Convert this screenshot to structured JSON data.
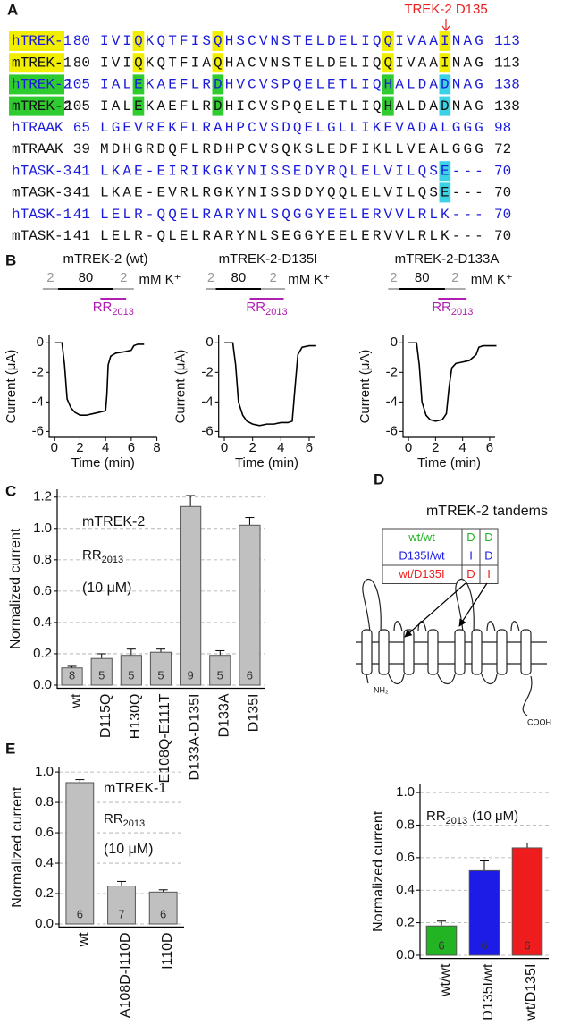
{
  "panel_labels": [
    "A",
    "B",
    "C",
    "D",
    "E"
  ],
  "alignment": {
    "marker": "TREK-2 D135",
    "rows": [
      {
        "name": "hTREK-1",
        "start": 80,
        "sequence": "IVIQKQTFISQHSCVNSTELDELIQQIVAAINAG",
        "end": 113,
        "color": "#1a1adc"
      },
      {
        "name": "mTREK-1",
        "start": 80,
        "sequence": "IVIQKQTFIAQHACVNSTELDELIQQIVAAINAG",
        "end": 113,
        "color": "#111111"
      },
      {
        "name": "hTREK-2",
        "start": 105,
        "sequence": "IALEKAEFLRDHVCVSPQELETLIQHALDADNAG",
        "end": 138,
        "color": "#1a1adc"
      },
      {
        "name": "mTREK-2",
        "start": 105,
        "sequence": "IALEKAEFLRDHICVSPQELETLIQHALDADNAG",
        "end": 138,
        "color": "#111111"
      },
      {
        "name": "hTRAAK",
        "start": 65,
        "sequence": "LGEVREKFLRAHPCVSDQELGLLIKEVADALGGG",
        "end": 98,
        "color": "#1a1adc"
      },
      {
        "name": "mTRAAK",
        "start": 39,
        "sequence": "MDHGRDQFLRDHPCVSQKSLEDFIKLLVEALGGG",
        "end": 72,
        "color": "#111111"
      },
      {
        "name": "hTASK-3",
        "start": 41,
        "sequence": "LKAE-EIRIKGKYNISSEDYRQLELVILQSE---",
        "end": 70,
        "color": "#1a1adc"
      },
      {
        "name": "mTASK-3",
        "start": 41,
        "sequence": "LKAE-EVRLRGKYNISSDDYQQLELVILQSE---",
        "end": 70,
        "color": "#111111"
      },
      {
        "name": "hTASK-1",
        "start": 41,
        "sequence": "LELR-QQELRARYNLSQGGYEELERVVLRLK---",
        "end": 70,
        "color": "#1a1adc"
      },
      {
        "name": "mTASK-1",
        "start": 41,
        "sequence": "LELR-QLELRARYNLSEGGYEELERVVLRLK---",
        "end": 70,
        "color": "#111111"
      }
    ]
  },
  "tandems": {
    "title": "mTREK-2 tandems",
    "n_terminus": "NH₂",
    "c_terminus": "COOH",
    "rows": [
      {
        "name": "wt/wt",
        "residues": [
          "D",
          "D"
        ],
        "color": "#22b422"
      },
      {
        "name": "D135I/wt",
        "residues": [
          "I",
          "D"
        ],
        "color": "#1c1ce6"
      },
      {
        "name": "wt/D135I",
        "residues": [
          "D",
          "I"
        ],
        "color": "#ee1c1c"
      }
    ]
  },
  "chart_data": [
    {
      "type": "line",
      "title": "mTREK-2 (wt)",
      "xlabel": "Time (min)",
      "ylabel": "Current (μA)",
      "color": "#000000",
      "solution": {
        "low": "2",
        "high": "80",
        "unit": "mM K⁺"
      },
      "drug": {
        "main": "RR",
        "sub": "2013"
      },
      "x": [
        0,
        0.6,
        0.8,
        1,
        1.3,
        1.6,
        2,
        2.5,
        3,
        3.5,
        4,
        4.1,
        4.2,
        4.4,
        4.8,
        5.5,
        6,
        6.2,
        6.5,
        7
      ],
      "values": [
        0,
        0,
        -1.5,
        -3.8,
        -4.4,
        -4.7,
        -4.9,
        -4.9,
        -4.8,
        -4.7,
        -4.6,
        -3.5,
        -1.5,
        -0.9,
        -0.7,
        -0.6,
        -0.5,
        -0.2,
        -0.1,
        -0.1
      ],
      "xlim": [
        -0.4,
        8
      ],
      "xticks": [
        0,
        2,
        4,
        6,
        8
      ],
      "ylim": [
        -6.4,
        0.5
      ],
      "yticks": [
        0,
        -2,
        -4,
        -6
      ]
    },
    {
      "type": "line",
      "title": "mTREK-2-D135I",
      "xlabel": "Time (min)",
      "ylabel": "Current (μA)",
      "color": "#000000",
      "solution": {
        "low": "2",
        "high": "80",
        "unit": "mM K⁺"
      },
      "drug": {
        "main": "RR",
        "sub": "2013"
      },
      "x": [
        0,
        0.6,
        0.8,
        1,
        1.3,
        1.6,
        2,
        2.5,
        3,
        3.5,
        4,
        4.5,
        4.8,
        5,
        5.2,
        5.5,
        6,
        6.5
      ],
      "values": [
        0,
        0,
        -1.5,
        -4,
        -4.9,
        -5.3,
        -5.5,
        -5.6,
        -5.5,
        -5.5,
        -5.4,
        -5.4,
        -5.3,
        -3,
        -0.8,
        -0.3,
        -0.2,
        -0.2
      ],
      "xlim": [
        -0.4,
        6.4
      ],
      "xticks": [
        0,
        2,
        4,
        6
      ],
      "ylim": [
        -6.4,
        0.5
      ],
      "yticks": [
        0,
        -2,
        -4,
        -6
      ]
    },
    {
      "type": "line",
      "title": "mTREK-2-D133A",
      "xlabel": "Time (min)",
      "ylabel": "Current (μA)",
      "color": "#000000",
      "solution": {
        "low": "2",
        "high": "80",
        "unit": "mM K⁺"
      },
      "drug": {
        "main": "RR",
        "sub": "2013"
      },
      "x": [
        0,
        0.6,
        0.8,
        1,
        1.3,
        1.6,
        2,
        2.5,
        2.8,
        3,
        3.2,
        3.5,
        4,
        4.5,
        5,
        5.2,
        5.5,
        6,
        6.5
      ],
      "values": [
        0,
        0,
        -1.5,
        -4,
        -4.9,
        -5.2,
        -5.3,
        -5.2,
        -4.8,
        -3,
        -1.7,
        -1.4,
        -1.3,
        -1.2,
        -0.8,
        -0.3,
        -0.2,
        -0.2,
        -0.2
      ],
      "xlim": [
        -0.4,
        6.4
      ],
      "xticks": [
        0,
        2,
        4,
        6
      ],
      "ylim": [
        -6.4,
        0.5
      ],
      "yticks": [
        0,
        -2,
        -4,
        -6
      ]
    },
    {
      "type": "bar",
      "title": "mTREK-2",
      "drug": {
        "main": "RR",
        "sub": "2013"
      },
      "concentration": "(10 μM)",
      "ylabel": "Normalized current",
      "color": "#c0c0c0",
      "grid": true,
      "categories": [
        "wt",
        "D115Q",
        "H130Q",
        "E108Q-E111T",
        "D133A-D135I",
        "D133A",
        "D135I"
      ],
      "values": [
        0.11,
        0.17,
        0.19,
        0.21,
        1.14,
        0.19,
        1.02
      ],
      "errors": [
        0.01,
        0.03,
        0.04,
        0.02,
        0.07,
        0.03,
        0.05
      ],
      "n": [
        8,
        5,
        5,
        5,
        9,
        5,
        6
      ],
      "ylim": [
        -0.02,
        1.25
      ],
      "yticks": [
        {
          "value": 0,
          "label": "0.0"
        },
        0.2,
        0.4,
        0.6,
        0.8,
        {
          "value": 1,
          "label": "1.0"
        },
        1.2
      ]
    },
    {
      "type": "bar",
      "drug": {
        "main": "RR",
        "sub": "2013"
      },
      "concentration": "(10 μM)",
      "ylabel": "Normalized current",
      "colors": [
        "#22b422",
        "#1c1ce6",
        "#ee1c1c"
      ],
      "grid": true,
      "categories": [
        "wt/wt",
        "D135I/wt",
        "wt/D135I"
      ],
      "values": [
        0.18,
        0.52,
        0.66
      ],
      "errors": [
        0.03,
        0.06,
        0.03
      ],
      "n": [
        6,
        6,
        6
      ],
      "ylim": [
        -0.02,
        1.05
      ],
      "yticks": [
        {
          "value": 0,
          "label": "0.0"
        },
        0.2,
        0.4,
        0.6,
        0.8,
        {
          "value": 1,
          "label": "1.0"
        }
      ]
    },
    {
      "type": "bar",
      "title": "mTREK-1",
      "drug": {
        "main": "RR",
        "sub": "2013"
      },
      "concentration": "(10 μM)",
      "ylabel": "Normalized current",
      "color": "#c0c0c0",
      "grid": true,
      "categories": [
        "wt",
        "A108D-I110D",
        "I110D"
      ],
      "values": [
        0.93,
        0.25,
        0.21
      ],
      "errors": [
        0.02,
        0.03,
        0.015
      ],
      "n": [
        6,
        7,
        6
      ],
      "ylim": [
        -0.02,
        1.03
      ],
      "yticks": [
        {
          "value": 0,
          "label": "0.0"
        },
        0.2,
        0.4,
        0.6,
        0.8,
        {
          "value": 1,
          "label": "1.0"
        }
      ]
    }
  ]
}
